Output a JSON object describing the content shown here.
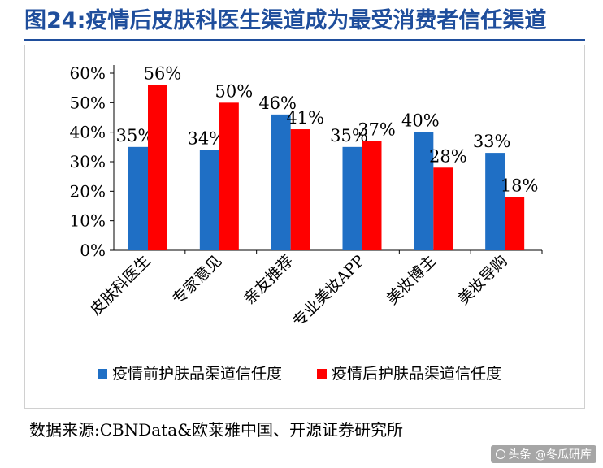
{
  "figure": {
    "title": "图24:疫情后皮肤科医生渠道成为最受消费者信任渠道",
    "source": "数据来源:CBNData&欧莱雅中国、开源证券研究所",
    "watermark": "头条 @冬瓜研库",
    "colors": {
      "title": "#1f4e9c",
      "before": "#1f6fc5",
      "after": "#ff0000"
    }
  },
  "chart_data": {
    "type": "bar",
    "title": "",
    "categories": [
      "皮肤科医生",
      "专家意见",
      "亲友推荐",
      "专业美妆APP",
      "美妆博主",
      "美妆导购"
    ],
    "series": [
      {
        "name": "疫情前护肤品渠道信任度",
        "values": [
          35,
          34,
          46,
          35,
          40,
          33
        ],
        "labels": [
          "35%",
          "34%",
          "46%",
          "35%",
          "40%",
          "33%"
        ]
      },
      {
        "name": "疫情后护肤品渠道信任度",
        "values": [
          56,
          50,
          41,
          37,
          28,
          18
        ],
        "labels": [
          "56%",
          "50%",
          "41%",
          "37%",
          "28%",
          "18%"
        ]
      }
    ],
    "y_ticks": [
      0,
      10,
      20,
      30,
      40,
      50,
      60
    ],
    "y_tick_labels": [
      "0%",
      "10%",
      "20%",
      "30%",
      "40%",
      "50%",
      "60%"
    ],
    "ylim": [
      0,
      60
    ],
    "xlabel": "",
    "ylabel": "",
    "grid": false,
    "legend_position": "bottom"
  }
}
